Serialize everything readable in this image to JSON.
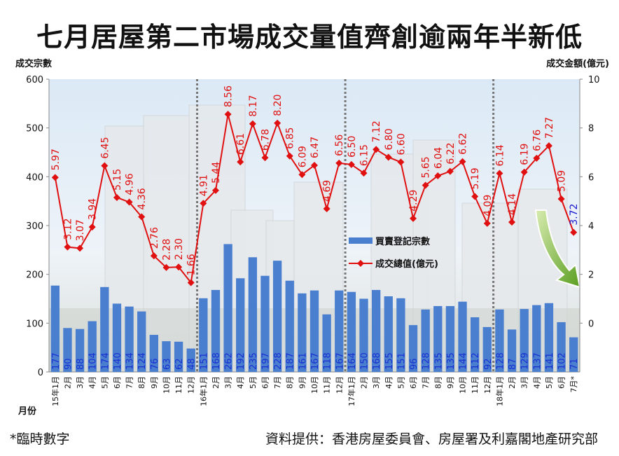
{
  "chart_data": {
    "type": "bar+line",
    "title": "七月居屋第二市場成交量值齊創逾兩年半新低",
    "ylabel_left": "成交宗數",
    "ylabel_right": "成交金額(億元)",
    "xlabel": "月份",
    "ylim_left": [
      0,
      600
    ],
    "yticks_left": [
      0,
      100,
      200,
      300,
      400,
      500,
      600
    ],
    "ylim_right": [
      -2,
      10
    ],
    "yticks_right": [
      0,
      2,
      4,
      6,
      8,
      10
    ],
    "categories": [
      "15年1月",
      "2月",
      "3月",
      "4月",
      "5月",
      "6月",
      "7月",
      "8月",
      "9月",
      "10月",
      "11月",
      "12月",
      "16年1月",
      "2月",
      "3月",
      "4月",
      "5月",
      "6月",
      "7月",
      "8月",
      "9月",
      "10月",
      "11月",
      "12月",
      "17年1月",
      "2月",
      "3月",
      "4月",
      "5月",
      "6月",
      "7月",
      "8月",
      "9月",
      "10月",
      "11月",
      "12月",
      "18年1月",
      "2月",
      "3月",
      "4月",
      "5月",
      "6月",
      "7月*"
    ],
    "year_separators_after": [
      "12月",
      "12月",
      "12月"
    ],
    "series": [
      {
        "name": "買賣登記宗數",
        "type": "bar",
        "axis": "left",
        "color": "#4a7fd0",
        "values": [
          177,
          90,
          88,
          104,
          174,
          140,
          134,
          124,
          76,
          63,
          62,
          48,
          151,
          168,
          262,
          192,
          235,
          197,
          228,
          187,
          161,
          167,
          118,
          167,
          164,
          150,
          168,
          155,
          151,
          96,
          128,
          135,
          135,
          144,
          112,
          92,
          128,
          87,
          129,
          137,
          141,
          102,
          71
        ]
      },
      {
        "name": "成交總值(億元)",
        "type": "line",
        "axis": "right",
        "color": "#e01010",
        "values": [
          5.97,
          3.12,
          3.07,
          3.94,
          6.45,
          5.15,
          4.96,
          4.36,
          2.76,
          2.28,
          2.3,
          1.66,
          4.91,
          5.44,
          8.56,
          6.61,
          8.17,
          6.78,
          8.2,
          6.85,
          6.09,
          6.47,
          4.69,
          6.56,
          6.5,
          6.15,
          7.12,
          6.8,
          6.6,
          4.29,
          5.65,
          6.04,
          6.22,
          6.62,
          5.19,
          4.09,
          6.14,
          4.14,
          6.19,
          6.76,
          7.27,
          5.09,
          3.72
        ],
        "last_label_color": "#1a1ad0"
      }
    ],
    "legend_placement": "center-right",
    "grid": false
  },
  "footnote": "*臨時數字",
  "source": "資料提供：香港房屋委員會、房屋署及利嘉閣地產研究部"
}
